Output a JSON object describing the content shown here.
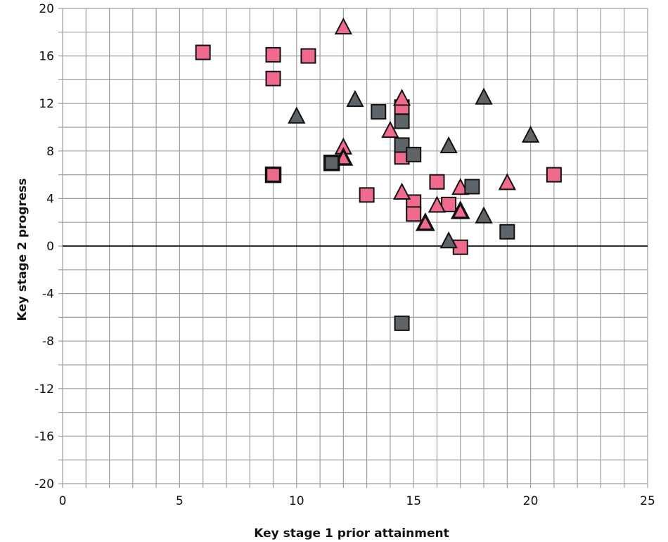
{
  "chart_data": {
    "type": "scatter",
    "title": "",
    "xlabel": "Key stage 1 prior attainment",
    "ylabel": "Key stage 2 progress",
    "xlim": [
      0,
      25
    ],
    "ylim": [
      -20,
      20
    ],
    "x_major_ticks": [
      0,
      5,
      10,
      15,
      20,
      25
    ],
    "x_minor_step": 1,
    "y_major_ticks": [
      -20,
      -16,
      -12,
      -8,
      -4,
      0,
      4,
      8,
      12,
      16,
      20
    ],
    "y_minor_step": 2,
    "grid": true,
    "zero_line": true,
    "legend": "none",
    "colors": {
      "pink": "#f06a8e",
      "gray": "#5f6468",
      "outline": "#111111",
      "grid": "#9e9e9e",
      "zero_line": "#111111"
    },
    "points": [
      {
        "x": 6,
        "y": 16.3,
        "shape": "square",
        "color": "pink",
        "bold": false
      },
      {
        "x": 9,
        "y": 16.1,
        "shape": "square",
        "color": "pink",
        "bold": false
      },
      {
        "x": 9,
        "y": 14.1,
        "shape": "square",
        "color": "pink",
        "bold": false
      },
      {
        "x": 10.5,
        "y": 16.0,
        "shape": "square",
        "color": "pink",
        "bold": false
      },
      {
        "x": 9,
        "y": 6.0,
        "shape": "square",
        "color": "pink",
        "bold": true
      },
      {
        "x": 13,
        "y": 4.3,
        "shape": "square",
        "color": "pink",
        "bold": false
      },
      {
        "x": 14.5,
        "y": 11.7,
        "shape": "square",
        "color": "pink",
        "bold": false
      },
      {
        "x": 14.5,
        "y": 7.5,
        "shape": "square",
        "color": "pink",
        "bold": false
      },
      {
        "x": 15,
        "y": 3.7,
        "shape": "square",
        "color": "pink",
        "bold": false
      },
      {
        "x": 15,
        "y": 2.7,
        "shape": "square",
        "color": "pink",
        "bold": false
      },
      {
        "x": 16,
        "y": 5.4,
        "shape": "square",
        "color": "pink",
        "bold": false
      },
      {
        "x": 16.5,
        "y": 3.5,
        "shape": "square",
        "color": "pink",
        "bold": false
      },
      {
        "x": 17,
        "y": -0.1,
        "shape": "square",
        "color": "pink",
        "bold": false
      },
      {
        "x": 21,
        "y": 6.0,
        "shape": "square",
        "color": "pink",
        "bold": false
      },
      {
        "x": 12,
        "y": 18.4,
        "shape": "triangle",
        "color": "pink",
        "bold": false
      },
      {
        "x": 12,
        "y": 8.3,
        "shape": "triangle",
        "color": "pink",
        "bold": false
      },
      {
        "x": 12,
        "y": 7.4,
        "shape": "triangle",
        "color": "pink",
        "bold": true
      },
      {
        "x": 14,
        "y": 9.7,
        "shape": "triangle",
        "color": "pink",
        "bold": false
      },
      {
        "x": 14.5,
        "y": 12.4,
        "shape": "triangle",
        "color": "pink",
        "bold": false
      },
      {
        "x": 14.5,
        "y": 4.5,
        "shape": "triangle",
        "color": "pink",
        "bold": false
      },
      {
        "x": 15.5,
        "y": 1.9,
        "shape": "triangle",
        "color": "pink",
        "bold": true
      },
      {
        "x": 16,
        "y": 3.4,
        "shape": "triangle",
        "color": "pink",
        "bold": false
      },
      {
        "x": 17,
        "y": 4.9,
        "shape": "triangle",
        "color": "pink",
        "bold": false
      },
      {
        "x": 17,
        "y": 2.9,
        "shape": "triangle",
        "color": "pink",
        "bold": true
      },
      {
        "x": 19,
        "y": 5.3,
        "shape": "triangle",
        "color": "pink",
        "bold": false
      },
      {
        "x": 11.5,
        "y": 7.0,
        "shape": "square",
        "color": "gray",
        "bold": true
      },
      {
        "x": 13.5,
        "y": 11.3,
        "shape": "square",
        "color": "gray",
        "bold": false
      },
      {
        "x": 14.5,
        "y": 10.5,
        "shape": "square",
        "color": "gray",
        "bold": false
      },
      {
        "x": 14.5,
        "y": 8.5,
        "shape": "square",
        "color": "gray",
        "bold": false
      },
      {
        "x": 15,
        "y": 7.7,
        "shape": "square",
        "color": "gray",
        "bold": false
      },
      {
        "x": 17.5,
        "y": 5.0,
        "shape": "square",
        "color": "gray",
        "bold": false
      },
      {
        "x": 19,
        "y": 1.2,
        "shape": "square",
        "color": "gray",
        "bold": false
      },
      {
        "x": 14.5,
        "y": -6.5,
        "shape": "square",
        "color": "gray",
        "bold": false
      },
      {
        "x": 10,
        "y": 10.9,
        "shape": "triangle",
        "color": "gray",
        "bold": false
      },
      {
        "x": 12.5,
        "y": 12.3,
        "shape": "triangle",
        "color": "gray",
        "bold": false
      },
      {
        "x": 16.5,
        "y": 8.4,
        "shape": "triangle",
        "color": "gray",
        "bold": false
      },
      {
        "x": 16.5,
        "y": 0.4,
        "shape": "triangle",
        "color": "gray",
        "bold": false
      },
      {
        "x": 18,
        "y": 12.5,
        "shape": "triangle",
        "color": "gray",
        "bold": false
      },
      {
        "x": 18,
        "y": 2.5,
        "shape": "triangle",
        "color": "gray",
        "bold": false
      },
      {
        "x": 20,
        "y": 9.3,
        "shape": "triangle",
        "color": "gray",
        "bold": false
      }
    ]
  }
}
